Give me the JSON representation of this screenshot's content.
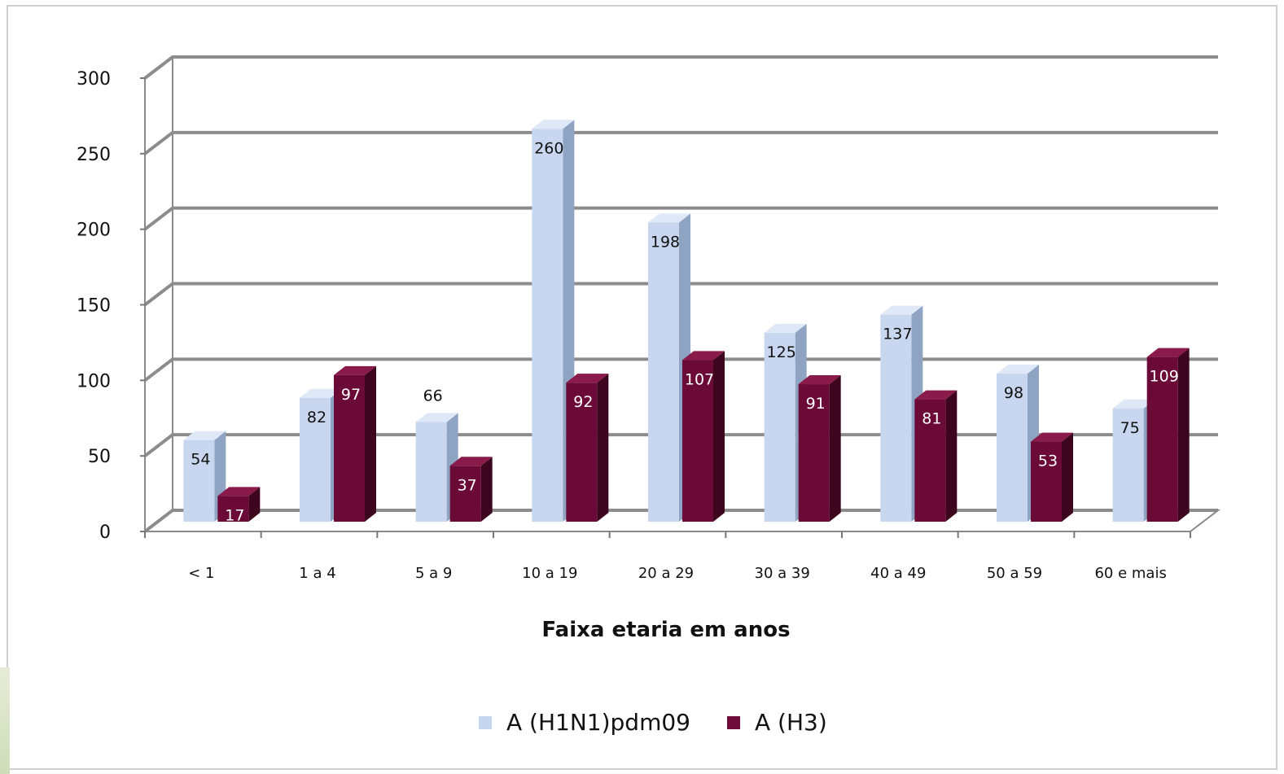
{
  "chart_data": {
    "type": "bar",
    "title": "",
    "xlabel": "Faixa etaria em anos",
    "ylabel": "",
    "ylim": [
      0,
      300
    ],
    "yticks": [
      0,
      50,
      100,
      150,
      200,
      250,
      300
    ],
    "categories": [
      "< 1",
      "1 a 4",
      "5 a 9",
      "10 a 19",
      "20 a 29",
      "30 a 39",
      "40 a 49",
      "50 a 59",
      "60 e mais"
    ],
    "series": [
      {
        "name": "A (H1N1)pdm09",
        "color": "#c5d5ee",
        "values": [
          54,
          82,
          66,
          260,
          198,
          125,
          137,
          98,
          75
        ]
      },
      {
        "name": "A (H3)",
        "color": "#6e0d38",
        "values": [
          17,
          97,
          37,
          92,
          107,
          91,
          81,
          53,
          109
        ]
      }
    ],
    "grid": true,
    "legend": "bottom-center",
    "style": "3d-clustered-column"
  }
}
